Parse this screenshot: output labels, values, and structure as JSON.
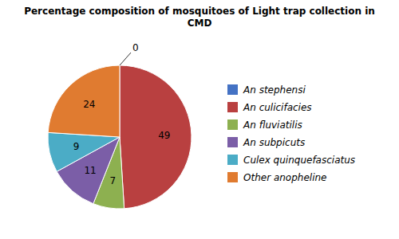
{
  "chart_data": {
    "type": "pie",
    "title": "Percentage composition of mosquitoes  of Light trap collection in\nCMD",
    "categories": [
      "An stephensi",
      "An culicifacies",
      "An fluviatilis",
      "An subpicuts",
      "Culex quinquefasciatus",
      "Other anopheline"
    ],
    "values": [
      0,
      49,
      7,
      11,
      9,
      24
    ],
    "colors": [
      "#4472C4",
      "#B94040",
      "#8DB050",
      "#7B5EA7",
      "#4BACC6",
      "#E07B30"
    ],
    "data_labels": true,
    "legend": "right"
  }
}
